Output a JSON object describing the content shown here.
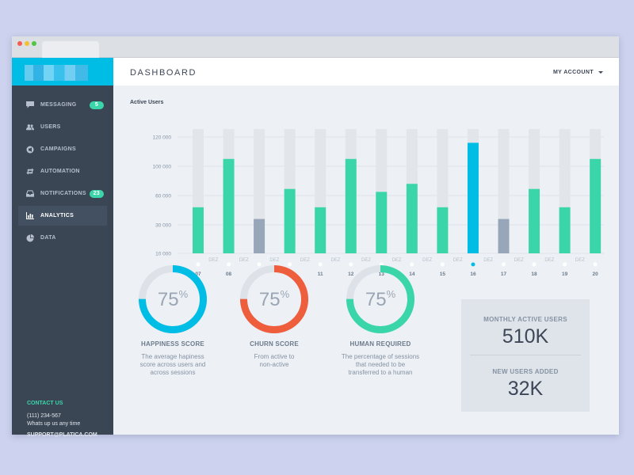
{
  "header": {
    "title": "DASHBOARD",
    "account_label": "MY ACCOUNT"
  },
  "sidebar": {
    "items": [
      {
        "label": "MESSAGING",
        "icon": "chat-bubble-icon",
        "badge": "5"
      },
      {
        "label": "USERS",
        "icon": "users-icon"
      },
      {
        "label": "CAMPAIGNS",
        "icon": "megaphone-icon"
      },
      {
        "label": "AUTOMATION",
        "icon": "repeat-icon"
      },
      {
        "label": "NOTIFICATIONS",
        "icon": "inbox-icon",
        "badge": "23"
      },
      {
        "label": "ANALYTICS",
        "icon": "bar-chart-icon",
        "active": true
      },
      {
        "label": "DATA",
        "icon": "pie-chart-icon"
      }
    ],
    "contact": {
      "title": "CONTACT US",
      "phone": "(111) 234-567",
      "note": "Whats up us any time",
      "email": "SUPPORT@PLATICA.COM"
    }
  },
  "chart_data": {
    "type": "bar",
    "title": "Active Users",
    "y_tick_labels": [
      "120 000",
      "100 000",
      "60 000",
      "30 000",
      "10 000"
    ],
    "categories": [
      "07",
      "08",
      "09",
      "10",
      "11",
      "12",
      "13",
      "14",
      "15",
      "16",
      "17",
      "18",
      "19",
      "20"
    ],
    "separator_label": "DEZ",
    "values": [
      48000,
      105000,
      36000,
      69000,
      48000,
      105000,
      65000,
      76000,
      48000,
      116000,
      36000,
      69000,
      48000,
      105000
    ],
    "max_value": 120000,
    "highlight_index": 9,
    "colors": {
      "normal": "#3ad6aa",
      "muted": "#98a6b9",
      "highlight": "#00bde5",
      "track": "#e2e6eb"
    },
    "muted_indices": [
      2,
      10
    ]
  },
  "metrics": [
    {
      "label": "HAPPINESS SCORE",
      "value": "75",
      "unit": "%",
      "percent": 75,
      "color": "#00bde5",
      "desc": [
        "The average hapiness",
        "score across users and",
        "across sessions"
      ]
    },
    {
      "label": "CHURN SCORE",
      "value": "75",
      "unit": "%",
      "percent": 75,
      "color": "#ee5e3d",
      "desc": [
        "From active to",
        "non-active"
      ]
    },
    {
      "label": "HUMAN REQUIRED",
      "value": "75",
      "unit": "%",
      "percent": 75,
      "color": "#3ad6aa",
      "desc": [
        "The percentage of sessions",
        "that needed to be",
        "transferred to a human"
      ]
    }
  ],
  "stats": {
    "monthly_label": "MONTHLY ACTIVE USERS",
    "monthly_value": "510K",
    "new_label": "NEW USERS ADDED",
    "new_value": "32K"
  }
}
